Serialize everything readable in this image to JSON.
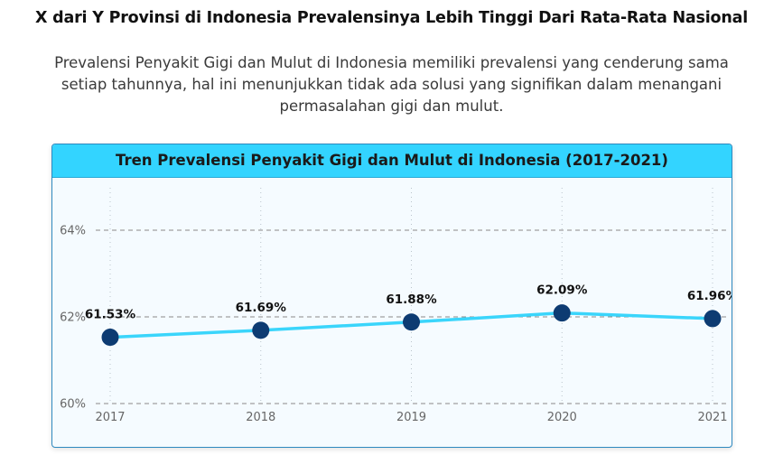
{
  "page": {
    "title": "X dari Y Provinsi di Indonesia Prevalensinya Lebih Tinggi Dari Rata-Rata Nasional",
    "subtitle": "Prevalensi Penyakit Gigi dan Mulut di Indonesia memiliki prevalensi yang cenderung sama setiap tahunnya, hal ini menunjukkan tidak ada solusi yang signifikan dalam menangani permasalahan gigi dan mulut."
  },
  "chart_data": {
    "type": "line",
    "title": "Tren Prevalensi Penyakit Gigi dan Mulut di Indonesia (2017-2021)",
    "xlabel": "",
    "ylabel": "",
    "categories": [
      "2017",
      "2018",
      "2019",
      "2020",
      "2021"
    ],
    "series": [
      {
        "values": [
          61.53,
          61.69,
          61.88,
          62.09,
          61.96
        ],
        "labels": [
          "61.53%",
          "61.69%",
          "61.88%",
          "62.09%",
          "61.96%"
        ]
      }
    ],
    "ylim": [
      60,
      64
    ],
    "yticks": [
      60,
      62,
      64
    ],
    "ytick_labels": [
      "60%",
      "62%",
      "64%"
    ],
    "grid": true,
    "colors": {
      "line": "#3ad5fb",
      "marker": "#0d3b72",
      "grid": "#8a8a8a",
      "header": "#33d4ff"
    }
  }
}
